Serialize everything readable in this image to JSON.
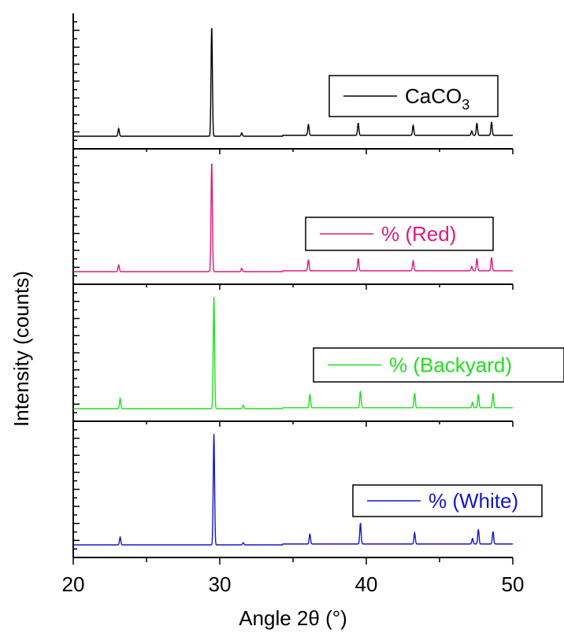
{
  "chart_data": {
    "type": "line",
    "xlabel": "Angle 2θ (°)",
    "ylabel": "Intensity (counts)",
    "xlim": [
      20,
      50
    ],
    "x_ticks": [
      20,
      30,
      40,
      50
    ],
    "x_tick_labels": [
      "20",
      "30",
      "40",
      "50"
    ],
    "ylim": [
      0,
      1
    ],
    "panels": [
      {
        "name": "CaCO3",
        "legend_main": "CaCO",
        "legend_sub": "3",
        "color": "#000000",
        "baseline": 0.04,
        "peaks": [
          [
            23.1,
            0.07
          ],
          [
            29.45,
            1.0
          ],
          [
            31.5,
            0.03
          ],
          [
            36.05,
            0.1
          ],
          [
            39.45,
            0.11
          ],
          [
            43.2,
            0.09
          ],
          [
            47.2,
            0.04
          ],
          [
            47.55,
            0.11
          ],
          [
            48.55,
            0.12
          ]
        ]
      },
      {
        "name": "% (Red)",
        "legend_main": "% (Red)",
        "legend_sub": "",
        "color": "#e0197d",
        "baseline": 0.04,
        "peaks": [
          [
            23.1,
            0.06
          ],
          [
            29.45,
            1.0
          ],
          [
            31.5,
            0.03
          ],
          [
            36.05,
            0.1
          ],
          [
            39.45,
            0.11
          ],
          [
            43.2,
            0.09
          ],
          [
            47.2,
            0.04
          ],
          [
            47.55,
            0.11
          ],
          [
            48.55,
            0.12
          ]
        ]
      },
      {
        "name": "% (Backyard)",
        "legend_main": "% (Backyard)",
        "legend_sub": "",
        "color": "#22dd22",
        "baseline": 0.04,
        "peaks": [
          [
            23.2,
            0.09
          ],
          [
            29.6,
            1.0
          ],
          [
            31.6,
            0.03
          ],
          [
            36.15,
            0.12
          ],
          [
            39.6,
            0.15
          ],
          [
            43.3,
            0.13
          ],
          [
            47.25,
            0.05
          ],
          [
            47.65,
            0.12
          ],
          [
            48.65,
            0.13
          ]
        ]
      },
      {
        "name": "% (White)",
        "legend_main": "% (White)",
        "legend_sub": "",
        "color": "#1515c8",
        "baseline": 0.04,
        "peaks": [
          [
            23.2,
            0.07
          ],
          [
            29.6,
            1.0
          ],
          [
            31.6,
            0.02
          ],
          [
            36.15,
            0.09
          ],
          [
            39.6,
            0.19
          ],
          [
            43.3,
            0.1
          ],
          [
            47.25,
            0.05
          ],
          [
            47.65,
            0.13
          ],
          [
            48.65,
            0.11
          ]
        ]
      }
    ],
    "grid": false,
    "legend_placement": "right"
  }
}
